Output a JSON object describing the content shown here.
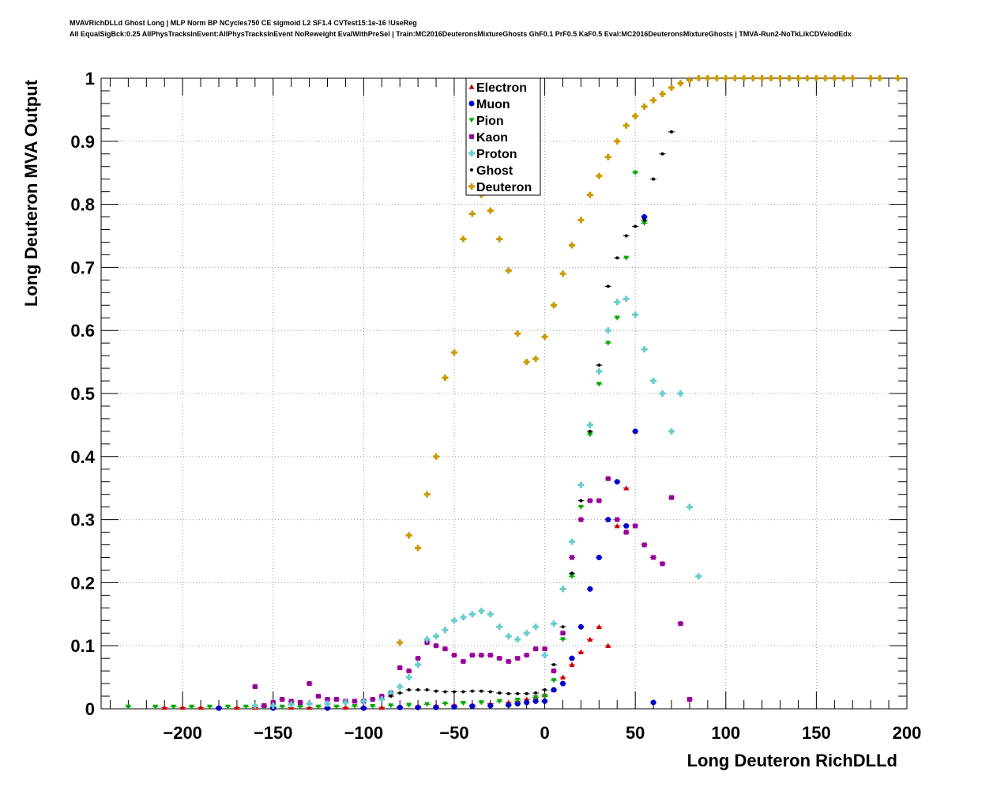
{
  "header": {
    "line1": "MVAVRichDLLd Ghost Long | MLP Norm BP NCycles750 CE sigmoid L2 SF1.4 CVTest15:1e-16 !UseReg",
    "line2": "All EqualSigBck:0.25 AllPhysTracksInEvent:AllPhysTracksInEvent NoReweight EvalWithPreSel | Train:MC2016DeuteronsMixtureGhosts GhF0.1 PrF0.5 KaF0.5 Eval:MC2016DeuteronsMixtureGhosts | TMVA-Run2-NoTkLikCDVelodEdx"
  },
  "chart_data": {
    "type": "scatter",
    "title": "",
    "xlabel": "Long Deuteron RichDLLd",
    "ylabel": "Long Deuteron MVA Output",
    "xlim": [
      -245,
      200
    ],
    "ylim": [
      0,
      1
    ],
    "x_ticks": [
      "−200",
      "−150",
      "−100",
      "−50",
      "0",
      "50",
      "100",
      "150",
      "200"
    ],
    "y_ticks": [
      "0",
      "0.1",
      "0.2",
      "0.3",
      "0.4",
      "0.5",
      "0.6",
      "0.7",
      "0.8",
      "0.9",
      "1"
    ],
    "grid": true,
    "legend_position": "top-center",
    "series": [
      {
        "name": "Electron",
        "color": "#cc0000",
        "marker": "triangle-up",
        "points": [
          [
            -210,
            0.002
          ],
          [
            -200,
            0.002
          ],
          [
            -190,
            0.002
          ],
          [
            -180,
            0.002
          ],
          [
            -170,
            0.002
          ],
          [
            -160,
            0.002
          ],
          [
            -150,
            0.002
          ],
          [
            -140,
            0.002
          ],
          [
            -130,
            0.002
          ],
          [
            -120,
            0.002
          ],
          [
            -110,
            0.002
          ],
          [
            -100,
            0.002
          ],
          [
            -90,
            0.002
          ],
          [
            -80,
            0.003
          ],
          [
            -70,
            0.004
          ],
          [
            -60,
            0.005
          ],
          [
            -50,
            0.006
          ],
          [
            -40,
            0.006
          ],
          [
            -30,
            0.008
          ],
          [
            -20,
            0.01
          ],
          [
            -15,
            0.012
          ],
          [
            -10,
            0.015
          ],
          [
            -5,
            0.018
          ],
          [
            0,
            0.022
          ],
          [
            5,
            0.03
          ],
          [
            10,
            0.05
          ],
          [
            15,
            0.07
          ],
          [
            20,
            0.09
          ],
          [
            25,
            0.11
          ],
          [
            30,
            0.13
          ],
          [
            35,
            0.1
          ],
          [
            40,
            0.29
          ],
          [
            45,
            0.35
          ]
        ]
      },
      {
        "name": "Muon",
        "color": "#0000cc",
        "marker": "circle",
        "points": [
          [
            -180,
            0.001
          ],
          [
            -150,
            0.001
          ],
          [
            -120,
            0.001
          ],
          [
            -100,
            0.001
          ],
          [
            -80,
            0.002
          ],
          [
            -70,
            0.002
          ],
          [
            -60,
            0.002
          ],
          [
            -50,
            0.003
          ],
          [
            -40,
            0.004
          ],
          [
            -30,
            0.005
          ],
          [
            -20,
            0.006
          ],
          [
            -15,
            0.008
          ],
          [
            -10,
            0.01
          ],
          [
            -5,
            0.012
          ],
          [
            0,
            0.012
          ],
          [
            5,
            0.03
          ],
          [
            10,
            0.04
          ],
          [
            15,
            0.08
          ],
          [
            20,
            0.13
          ],
          [
            25,
            0.19
          ],
          [
            30,
            0.24
          ],
          [
            35,
            0.3
          ],
          [
            40,
            0.36
          ],
          [
            45,
            0.29
          ],
          [
            50,
            0.44
          ],
          [
            55,
            0.78
          ],
          [
            60,
            0.01
          ]
        ]
      },
      {
        "name": "Pion",
        "color": "#00aa00",
        "marker": "triangle-down",
        "points": [
          [
            -230,
            0.003
          ],
          [
            -215,
            0.003
          ],
          [
            -205,
            0.003
          ],
          [
            -195,
            0.003
          ],
          [
            -185,
            0.003
          ],
          [
            -175,
            0.003
          ],
          [
            -165,
            0.003
          ],
          [
            -155,
            0.003
          ],
          [
            -145,
            0.003
          ],
          [
            -135,
            0.003
          ],
          [
            -125,
            0.003
          ],
          [
            -115,
            0.003
          ],
          [
            -105,
            0.004
          ],
          [
            -95,
            0.004
          ],
          [
            -85,
            0.005
          ],
          [
            -75,
            0.006
          ],
          [
            -65,
            0.007
          ],
          [
            -55,
            0.008
          ],
          [
            -45,
            0.009
          ],
          [
            -35,
            0.01
          ],
          [
            -25,
            0.012
          ],
          [
            -15,
            0.014
          ],
          [
            -5,
            0.018
          ],
          [
            0,
            0.02
          ],
          [
            5,
            0.045
          ],
          [
            10,
            0.11
          ],
          [
            15,
            0.21
          ],
          [
            20,
            0.32
          ],
          [
            25,
            0.435
          ],
          [
            30,
            0.515
          ],
          [
            35,
            0.58
          ],
          [
            40,
            0.62
          ],
          [
            45,
            0.715
          ],
          [
            50,
            0.85
          ],
          [
            55,
            0.77
          ]
        ]
      },
      {
        "name": "Kaon",
        "color": "#990099",
        "marker": "square",
        "points": [
          [
            -160,
            0.035
          ],
          [
            -155,
            0.005
          ],
          [
            -150,
            0.01
          ],
          [
            -145,
            0.015
          ],
          [
            -140,
            0.012
          ],
          [
            -135,
            0.01
          ],
          [
            -130,
            0.04
          ],
          [
            -125,
            0.02
          ],
          [
            -120,
            0.015
          ],
          [
            -115,
            0.015
          ],
          [
            -110,
            0.012
          ],
          [
            -105,
            0.012
          ],
          [
            -100,
            0.012
          ],
          [
            -95,
            0.015
          ],
          [
            -90,
            0.02
          ],
          [
            -85,
            0.025
          ],
          [
            -80,
            0.065
          ],
          [
            -75,
            0.06
          ],
          [
            -70,
            0.08
          ],
          [
            -65,
            0.105
          ],
          [
            -60,
            0.1
          ],
          [
            -55,
            0.095
          ],
          [
            -50,
            0.085
          ],
          [
            -45,
            0.075
          ],
          [
            -40,
            0.085
          ],
          [
            -35,
            0.085
          ],
          [
            -30,
            0.085
          ],
          [
            -25,
            0.08
          ],
          [
            -20,
            0.075
          ],
          [
            -15,
            0.08
          ],
          [
            -10,
            0.085
          ],
          [
            -5,
            0.095
          ],
          [
            0,
            0.095
          ],
          [
            5,
            0.06
          ],
          [
            10,
            0.12
          ],
          [
            15,
            0.24
          ],
          [
            20,
            0.3
          ],
          [
            25,
            0.33
          ],
          [
            30,
            0.33
          ],
          [
            35,
            0.365
          ],
          [
            40,
            0.3
          ],
          [
            45,
            0.28
          ],
          [
            50,
            0.29
          ],
          [
            55,
            0.26
          ],
          [
            60,
            0.24
          ],
          [
            65,
            0.23
          ],
          [
            70,
            0.335
          ],
          [
            75,
            0.135
          ],
          [
            80,
            0.015
          ]
        ]
      },
      {
        "name": "Proton",
        "color": "#66cccc",
        "marker": "cross",
        "points": [
          [
            -160,
            0.005
          ],
          [
            -150,
            0.005
          ],
          [
            -140,
            0.007
          ],
          [
            -130,
            0.008
          ],
          [
            -120,
            0.008
          ],
          [
            -110,
            0.01
          ],
          [
            -100,
            0.012
          ],
          [
            -90,
            0.015
          ],
          [
            -85,
            0.025
          ],
          [
            -80,
            0.035
          ],
          [
            -75,
            0.05
          ],
          [
            -70,
            0.07
          ],
          [
            -65,
            0.11
          ],
          [
            -60,
            0.115
          ],
          [
            -55,
            0.125
          ],
          [
            -50,
            0.14
          ],
          [
            -45,
            0.145
          ],
          [
            -40,
            0.15
          ],
          [
            -35,
            0.155
          ],
          [
            -30,
            0.15
          ],
          [
            -25,
            0.13
          ],
          [
            -20,
            0.115
          ],
          [
            -15,
            0.11
          ],
          [
            -10,
            0.12
          ],
          [
            -5,
            0.13
          ],
          [
            0,
            0.085
          ],
          [
            5,
            0.135
          ],
          [
            10,
            0.19
          ],
          [
            15,
            0.265
          ],
          [
            20,
            0.355
          ],
          [
            25,
            0.45
          ],
          [
            30,
            0.535
          ],
          [
            35,
            0.6
          ],
          [
            40,
            0.645
          ],
          [
            45,
            0.65
          ],
          [
            50,
            0.625
          ],
          [
            55,
            0.57
          ],
          [
            60,
            0.52
          ],
          [
            65,
            0.5
          ],
          [
            70,
            0.44
          ],
          [
            75,
            0.5
          ],
          [
            80,
            0.32
          ],
          [
            85,
            0.21
          ]
        ]
      },
      {
        "name": "Ghost",
        "color": "#000000",
        "marker": "star",
        "points": [
          [
            -85,
            0.02
          ],
          [
            -80,
            0.025
          ],
          [
            -75,
            0.03
          ],
          [
            -70,
            0.03
          ],
          [
            -65,
            0.03
          ],
          [
            -60,
            0.028
          ],
          [
            -55,
            0.027
          ],
          [
            -50,
            0.027
          ],
          [
            -45,
            0.027
          ],
          [
            -40,
            0.028
          ],
          [
            -35,
            0.028
          ],
          [
            -30,
            0.027
          ],
          [
            -25,
            0.025
          ],
          [
            -20,
            0.024
          ],
          [
            -15,
            0.024
          ],
          [
            -10,
            0.024
          ],
          [
            -5,
            0.025
          ],
          [
            0,
            0.03
          ],
          [
            5,
            0.07
          ],
          [
            10,
            0.13
          ],
          [
            15,
            0.215
          ],
          [
            20,
            0.33
          ],
          [
            25,
            0.44
          ],
          [
            30,
            0.545
          ],
          [
            35,
            0.67
          ],
          [
            40,
            0.715
          ],
          [
            45,
            0.75
          ],
          [
            50,
            0.765
          ],
          [
            55,
            0.775
          ],
          [
            60,
            0.84
          ],
          [
            65,
            0.88
          ],
          [
            70,
            0.915
          ]
        ]
      },
      {
        "name": "Deuteron",
        "color": "#cc9900",
        "marker": "cross",
        "points": [
          [
            -80,
            0.105
          ],
          [
            -75,
            0.275
          ],
          [
            -70,
            0.255
          ],
          [
            -65,
            0.34
          ],
          [
            -60,
            0.4
          ],
          [
            -55,
            0.525
          ],
          [
            -50,
            0.565
          ],
          [
            -45,
            0.745
          ],
          [
            -40,
            0.785
          ],
          [
            -35,
            0.815
          ],
          [
            -30,
            0.79
          ],
          [
            -25,
            0.745
          ],
          [
            -20,
            0.695
          ],
          [
            -15,
            0.595
          ],
          [
            -10,
            0.55
          ],
          [
            -5,
            0.555
          ],
          [
            0,
            0.59
          ],
          [
            5,
            0.64
          ],
          [
            10,
            0.69
          ],
          [
            15,
            0.735
          ],
          [
            20,
            0.775
          ],
          [
            25,
            0.815
          ],
          [
            30,
            0.845
          ],
          [
            35,
            0.875
          ],
          [
            40,
            0.9
          ],
          [
            45,
            0.925
          ],
          [
            50,
            0.94
          ],
          [
            55,
            0.955
          ],
          [
            60,
            0.965
          ],
          [
            65,
            0.975
          ],
          [
            70,
            0.985
          ],
          [
            75,
            0.992
          ],
          [
            80,
            0.997
          ],
          [
            85,
            1.0
          ],
          [
            90,
            1.0
          ],
          [
            95,
            1.0
          ],
          [
            100,
            1.0
          ],
          [
            105,
            1.0
          ],
          [
            110,
            1.0
          ],
          [
            115,
            1.0
          ],
          [
            120,
            1.0
          ],
          [
            125,
            1.0
          ],
          [
            130,
            1.0
          ],
          [
            135,
            1.0
          ],
          [
            140,
            1.0
          ],
          [
            145,
            1.0
          ],
          [
            150,
            1.0
          ],
          [
            155,
            1.0
          ],
          [
            160,
            1.0
          ],
          [
            165,
            1.0
          ],
          [
            170,
            1.0
          ],
          [
            180,
            1.0
          ],
          [
            185,
            1.0
          ],
          [
            195,
            1.0
          ]
        ]
      }
    ]
  }
}
